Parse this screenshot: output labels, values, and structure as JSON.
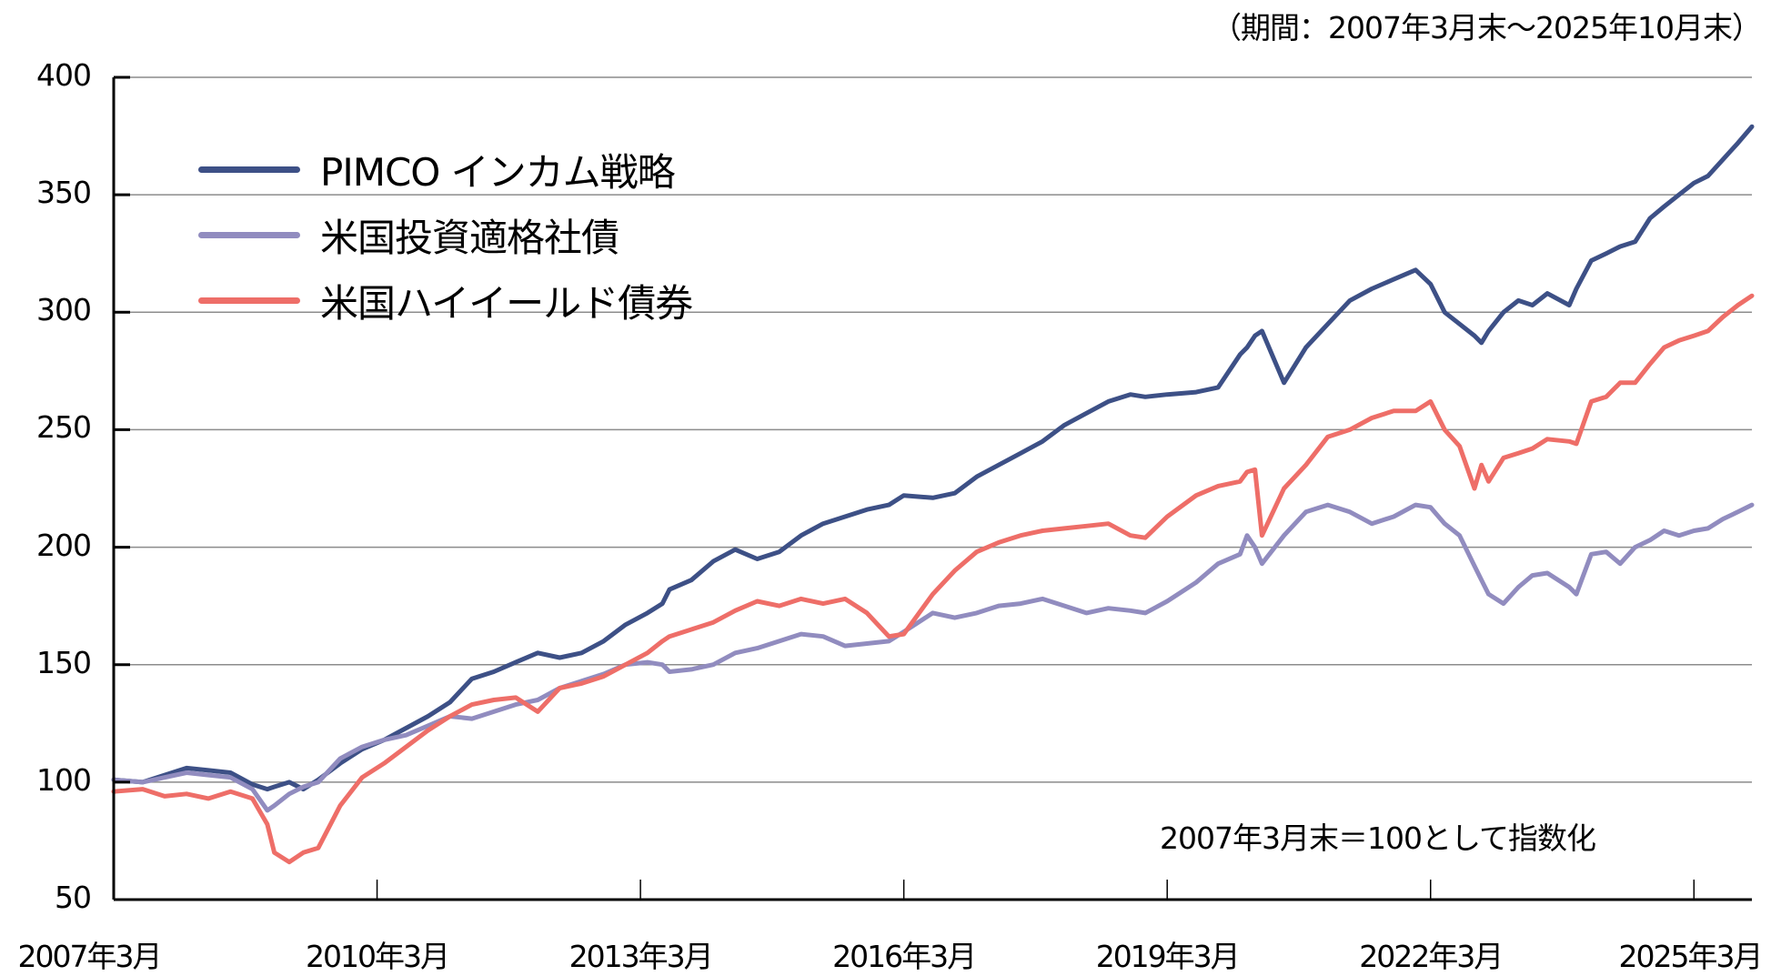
{
  "chart_data": {
    "type": "line",
    "title": "",
    "period_label": "（期間：2007年3月末～2025年10月末）",
    "note": "2007年3月末＝100として指数化",
    "xlabel": "",
    "ylabel": "",
    "ylim": [
      50,
      400
    ],
    "yticks": [
      "400",
      "350",
      "300",
      "250",
      "200",
      "150",
      "100",
      "50"
    ],
    "ytick_values": [
      400,
      350,
      300,
      250,
      200,
      150,
      100,
      50
    ],
    "xticks": [
      "2007年3月",
      "2010年3月",
      "2013年3月",
      "2016年3月",
      "2019年3月",
      "2022年3月",
      "2025年3月"
    ],
    "xtick_positions": [
      2007.17,
      2010.17,
      2013.17,
      2016.17,
      2019.17,
      2022.17,
      2025.17
    ],
    "xlim": [
      2007.17,
      2025.83
    ],
    "grid": true,
    "legend_position": "upper-left",
    "x": [
      2007.17,
      2007.5,
      2007.75,
      2008.0,
      2008.25,
      2008.5,
      2008.75,
      2008.92,
      2009.0,
      2009.17,
      2009.33,
      2009.5,
      2009.75,
      2010.0,
      2010.25,
      2010.5,
      2010.75,
      2011.0,
      2011.25,
      2011.5,
      2011.75,
      2012.0,
      2012.25,
      2012.5,
      2012.75,
      2013.0,
      2013.25,
      2013.42,
      2013.5,
      2013.75,
      2014.0,
      2014.25,
      2014.5,
      2014.75,
      2015.0,
      2015.25,
      2015.5,
      2015.75,
      2016.0,
      2016.17,
      2016.5,
      2016.75,
      2017.0,
      2017.25,
      2017.5,
      2017.75,
      2018.0,
      2018.25,
      2018.5,
      2018.75,
      2018.92,
      2019.17,
      2019.5,
      2019.75,
      2020.0,
      2020.08,
      2020.17,
      2020.25,
      2020.5,
      2020.75,
      2021.0,
      2021.25,
      2021.5,
      2021.75,
      2022.0,
      2022.17,
      2022.33,
      2022.5,
      2022.67,
      2022.75,
      2022.83,
      2023.0,
      2023.17,
      2023.33,
      2023.5,
      2023.75,
      2023.83,
      2024.0,
      2024.17,
      2024.33,
      2024.5,
      2024.67,
      2024.83,
      2025.0,
      2025.17,
      2025.33,
      2025.5,
      2025.67,
      2025.83
    ],
    "series": [
      {
        "name": "PIMCO インカム戦略",
        "color": "#3D5086",
        "values": [
          101,
          100,
          103,
          106,
          105,
          104,
          99,
          97,
          98,
          100,
          97,
          101,
          108,
          114,
          118,
          123,
          128,
          134,
          144,
          147,
          151,
          155,
          153,
          155,
          160,
          167,
          172,
          176,
          182,
          186,
          194,
          199,
          195,
          198,
          205,
          210,
          213,
          216,
          218,
          222,
          221,
          223,
          230,
          235,
          240,
          245,
          252,
          257,
          262,
          265,
          264,
          265,
          266,
          268,
          282,
          285,
          290,
          292,
          270,
          285,
          295,
          305,
          310,
          314,
          318,
          312,
          300,
          295,
          290,
          287,
          292,
          300,
          305,
          303,
          308,
          303,
          310,
          322,
          325,
          328,
          330,
          340,
          345,
          350,
          355,
          358,
          365,
          372,
          379
        ]
      },
      {
        "name": "米国投資適格社債",
        "color": "#918CBF",
        "values": [
          101,
          100,
          102,
          104,
          103,
          102,
          97,
          88,
          90,
          95,
          98,
          100,
          110,
          115,
          118,
          120,
          124,
          128,
          127,
          130,
          133,
          135,
          140,
          143,
          146,
          150,
          151,
          150,
          147,
          148,
          150,
          155,
          157,
          160,
          163,
          162,
          158,
          159,
          160,
          164,
          172,
          170,
          172,
          175,
          176,
          178,
          175,
          172,
          174,
          173,
          172,
          177,
          185,
          193,
          197,
          205,
          200,
          193,
          205,
          215,
          218,
          215,
          210,
          213,
          218,
          217,
          210,
          205,
          192,
          186,
          180,
          176,
          183,
          188,
          189,
          183,
          180,
          197,
          198,
          193,
          200,
          203,
          207,
          205,
          207,
          208,
          212,
          215,
          218
        ]
      },
      {
        "name": "米国ハイイールド債券",
        "color": "#EE6E68",
        "values": [
          96,
          97,
          94,
          95,
          93,
          96,
          93,
          82,
          70,
          66,
          70,
          72,
          90,
          102,
          108,
          115,
          122,
          128,
          133,
          135,
          136,
          130,
          140,
          142,
          145,
          150,
          155,
          160,
          162,
          165,
          168,
          173,
          177,
          175,
          178,
          176,
          178,
          172,
          162,
          163,
          180,
          190,
          198,
          202,
          205,
          207,
          208,
          209,
          210,
          205,
          204,
          213,
          222,
          226,
          228,
          232,
          233,
          205,
          225,
          235,
          247,
          250,
          255,
          258,
          258,
          262,
          250,
          243,
          225,
          235,
          228,
          238,
          240,
          242,
          246,
          245,
          244,
          262,
          264,
          270,
          270,
          278,
          285,
          288,
          290,
          292,
          298,
          303,
          307
        ]
      }
    ]
  },
  "legend": {
    "items": [
      {
        "label": "PIMCO インカム戦略",
        "color": "#3D5086"
      },
      {
        "label": "米国投資適格社債",
        "color": "#918CBF"
      },
      {
        "label": "米国ハイイールド債券",
        "color": "#EE6E68"
      }
    ]
  },
  "colors": {
    "grid": "#8C8C8C",
    "axis": "#000000"
  }
}
